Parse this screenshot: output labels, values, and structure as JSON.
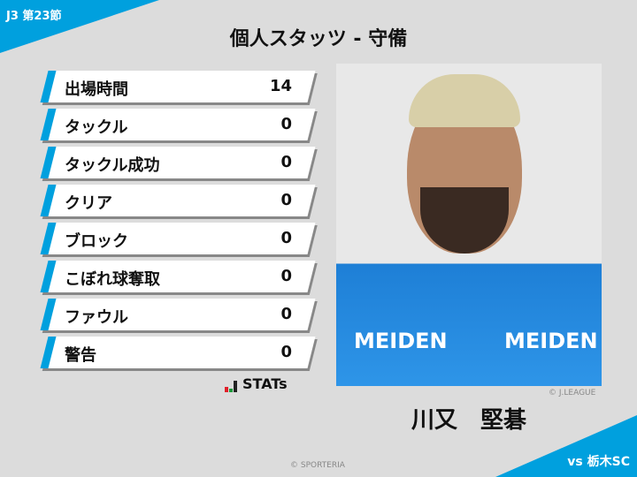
{
  "round": "J3 第23節",
  "title": "個人スタッツ - 守備",
  "stats": [
    {
      "label": "出場時間",
      "value": "14"
    },
    {
      "label": "タックル",
      "value": "0"
    },
    {
      "label": "タックル成功",
      "value": "0"
    },
    {
      "label": "クリア",
      "value": "0"
    },
    {
      "label": "ブロック",
      "value": "0"
    },
    {
      "label": "こぼれ球奪取",
      "value": "0"
    },
    {
      "label": "ファウル",
      "value": "0"
    },
    {
      "label": "警告",
      "value": "0"
    }
  ],
  "logo": "STATs",
  "photo": {
    "sponsor": "MEIDEN",
    "credit": "© J.LEAGUE"
  },
  "player_name": "川又　堅碁",
  "opponent": "vs 栃木SC",
  "footer": "© SPORTERIA",
  "colors": {
    "accent": "#00a0de",
    "background": "#dcdcdc"
  }
}
